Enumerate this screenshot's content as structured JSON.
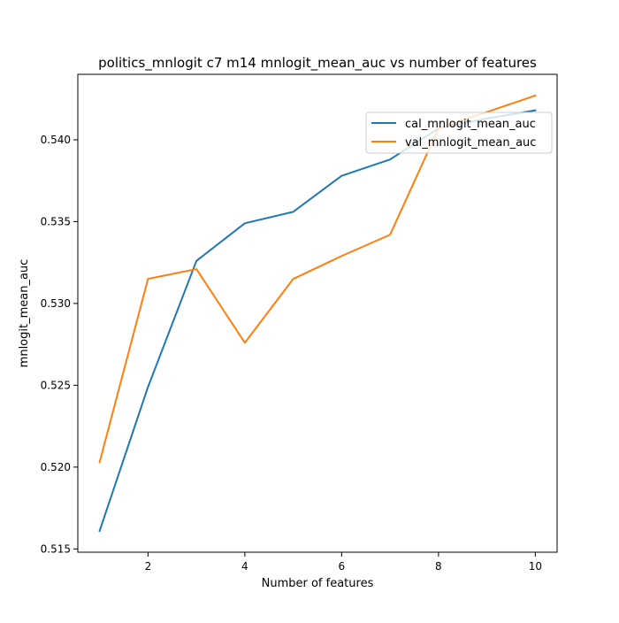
{
  "chart_data": {
    "type": "line",
    "title": "politics_mnlogit c7 m14 mnlogit_mean_auc vs number of features",
    "xlabel": "Number of features",
    "ylabel": "mnlogit_mean_auc",
    "x": [
      1,
      2,
      3,
      4,
      5,
      6,
      7,
      8,
      9,
      10
    ],
    "xlim": [
      0.55,
      10.45
    ],
    "ylim": [
      0.5148,
      0.544
    ],
    "xticks": [
      2,
      4,
      6,
      8,
      10
    ],
    "yticks": [
      0.515,
      0.52,
      0.525,
      0.53,
      0.535,
      0.54
    ],
    "xtick_labels": [
      "2",
      "4",
      "6",
      "8",
      "10"
    ],
    "ytick_labels": [
      "0.515",
      "0.520",
      "0.525",
      "0.530",
      "0.535",
      "0.540"
    ],
    "grid": false,
    "legend_position": "upper right",
    "series": [
      {
        "name": "cal_mnlogit_mean_auc",
        "color": "#1f77b4",
        "values": [
          0.5161,
          0.5249,
          0.5326,
          0.5349,
          0.5356,
          0.5378,
          0.5388,
          0.5407,
          0.5413,
          0.5418
        ]
      },
      {
        "name": "val_mnlogit_mean_auc",
        "color": "#ff7f0e",
        "values": [
          0.5203,
          0.5315,
          0.5321,
          0.5276,
          0.5315,
          0.5329,
          0.5342,
          0.5407,
          0.5417,
          0.5427
        ]
      }
    ]
  }
}
